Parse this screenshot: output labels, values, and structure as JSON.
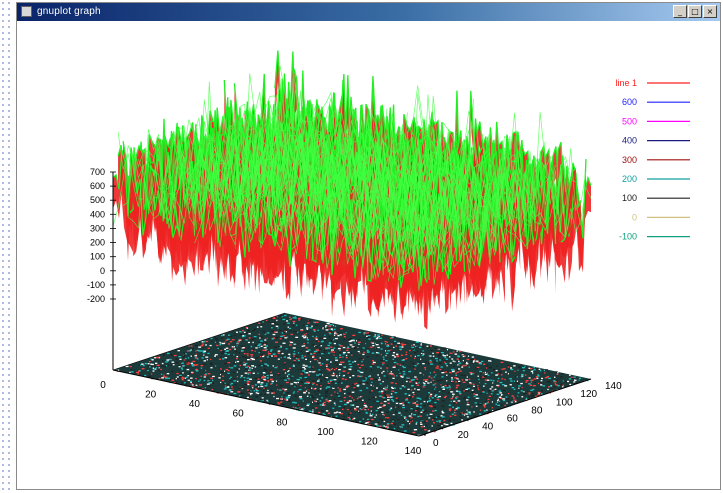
{
  "window": {
    "title": "gnuplot graph",
    "minimize_glyph": "_",
    "maximize_glyph": "□",
    "close_glyph": "×"
  },
  "chart_data": {
    "type": "surface3d",
    "title": "",
    "z_ticks": [
      "700",
      "600",
      "500",
      "400",
      "300",
      "200",
      "100",
      "0",
      "-100",
      "-200"
    ],
    "x_ticks": [
      "0",
      "20",
      "40",
      "60",
      "80",
      "100",
      "120",
      "140"
    ],
    "y_ticks": [
      "0",
      "20",
      "40",
      "60",
      "80",
      "100",
      "120",
      "140"
    ],
    "x_range": [
      0,
      140
    ],
    "y_range": [
      0,
      140
    ],
    "z_range": [
      -200,
      700
    ],
    "grid": false,
    "legend_position": "top-right",
    "legend": [
      {
        "label": "line 1",
        "color": "#ff2020"
      },
      {
        "label": "600",
        "color": "#2020ff"
      },
      {
        "label": "500",
        "color": "#ff00ff"
      },
      {
        "label": "400",
        "color": "#1a1a80"
      },
      {
        "label": "300",
        "color": "#a01010"
      },
      {
        "label": "200",
        "color": "#10a0a0"
      },
      {
        "label": "100",
        "color": "#202020"
      },
      {
        "label": "0",
        "color": "#d0c080"
      },
      {
        "label": "-100",
        "color": "#10a080"
      }
    ],
    "surface_colors": {
      "top": "#22ee22",
      "side": "#ee2222",
      "contours": [
        "#20c0c0",
        "#ff4040",
        "#ffffff",
        "#202020"
      ]
    }
  }
}
